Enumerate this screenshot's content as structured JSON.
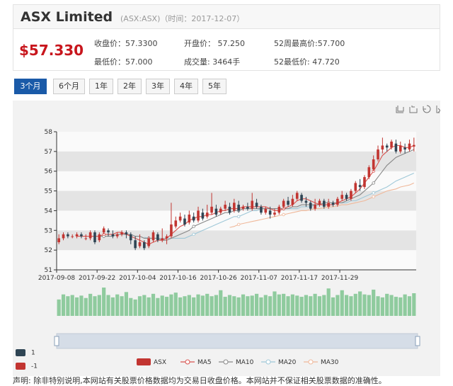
{
  "header": {
    "title": "ASX Limited",
    "subtitle": "(ASX:ASX)（时间：2017-12-07）"
  },
  "stats": {
    "price": "$57.330",
    "close": "收盘价：57.3300",
    "open": "开盘价： 57.250",
    "high52": "52周最高价:57.700",
    "low": "最低价：57.000",
    "volume": "成交量: 3464手",
    "low52": "52最低价: 47.720"
  },
  "tabs": [
    {
      "label": "3个月",
      "active": true
    },
    {
      "label": "6个月",
      "active": false
    },
    {
      "label": "1年",
      "active": false
    },
    {
      "label": "2年",
      "active": false
    },
    {
      "label": "3年",
      "active": false
    },
    {
      "label": "4年",
      "active": false
    },
    {
      "label": "5年",
      "active": false
    }
  ],
  "toolbar_icons": [
    "data-zoom-icon",
    "zoom-reset-icon",
    "restore-icon",
    "save-image-icon"
  ],
  "colors": {
    "up": "#c23531",
    "down": "#2f4554",
    "volume": "#8fcb9e",
    "ma5": "#d9534f",
    "ma10": "#888888",
    "ma20": "#9fc8d8",
    "ma30": "#f0b89a"
  },
  "chart_data": {
    "type": "candlestick",
    "ylim": [
      51,
      58
    ],
    "yticks": [
      "58",
      "57",
      "56",
      "55",
      "54",
      "53",
      "52",
      "51"
    ],
    "xticks": [
      "2017-09-08",
      "2017-09-22",
      "2017-10-04",
      "2017-10-16",
      "2017-10-26",
      "2017-11-07",
      "2017-11-17",
      "2017-11-29"
    ],
    "candles": [
      [
        52.4,
        52.6,
        52.3,
        52.8
      ],
      [
        52.6,
        52.8,
        52.5,
        52.9
      ],
      [
        52.8,
        52.7,
        52.6,
        52.9
      ],
      [
        52.7,
        52.7,
        52.6,
        52.8
      ],
      [
        52.7,
        52.8,
        52.6,
        52.9
      ],
      [
        52.8,
        52.7,
        52.6,
        52.9
      ],
      [
        52.6,
        52.6,
        52.5,
        52.8
      ],
      [
        52.6,
        52.9,
        52.5,
        53.0
      ],
      [
        52.9,
        52.4,
        52.3,
        53.0
      ],
      [
        52.5,
        52.8,
        52.4,
        52.9
      ],
      [
        52.9,
        53.1,
        52.8,
        53.2
      ],
      [
        53.0,
        52.9,
        52.7,
        53.1
      ],
      [
        52.8,
        52.7,
        52.6,
        53.0
      ],
      [
        52.7,
        52.8,
        52.6,
        52.9
      ],
      [
        52.8,
        52.9,
        52.7,
        53.0
      ],
      [
        52.9,
        52.8,
        52.6,
        53.0
      ],
      [
        52.8,
        52.5,
        52.3,
        52.9
      ],
      [
        52.5,
        52.1,
        52.0,
        52.7
      ],
      [
        52.2,
        52.4,
        52.1,
        52.8
      ],
      [
        52.4,
        52.1,
        52.0,
        52.5
      ],
      [
        52.2,
        52.6,
        52.1,
        52.7
      ],
      [
        52.5,
        52.9,
        52.4,
        53.0
      ],
      [
        52.8,
        52.5,
        52.4,
        52.9
      ],
      [
        52.5,
        52.6,
        52.4,
        53.1
      ],
      [
        52.6,
        52.7,
        52.3,
        52.8
      ],
      [
        52.7,
        53.3,
        52.6,
        54.4
      ],
      [
        53.2,
        53.5,
        53.1,
        53.7
      ],
      [
        53.5,
        53.7,
        53.4,
        53.9
      ],
      [
        53.6,
        53.3,
        53.2,
        53.8
      ],
      [
        53.4,
        53.8,
        53.3,
        54.0
      ],
      [
        53.7,
        53.5,
        53.4,
        53.9
      ],
      [
        53.5,
        54.0,
        53.4,
        54.2
      ],
      [
        53.9,
        53.6,
        53.5,
        54.1
      ],
      [
        53.7,
        53.9,
        53.6,
        54.3
      ],
      [
        53.9,
        54.2,
        53.8,
        54.9
      ],
      [
        54.1,
        53.8,
        53.7,
        54.3
      ],
      [
        53.9,
        54.1,
        53.8,
        54.2
      ],
      [
        54.1,
        54.3,
        54.0,
        54.5
      ],
      [
        54.2,
        53.9,
        53.8,
        54.4
      ],
      [
        54.0,
        54.4,
        53.9,
        54.6
      ],
      [
        54.3,
        54.0,
        53.9,
        54.5
      ],
      [
        54.1,
        54.2,
        54.0,
        54.3
      ],
      [
        54.2,
        54.1,
        54.0,
        54.4
      ],
      [
        54.1,
        54.5,
        54.0,
        54.9
      ],
      [
        54.4,
        54.2,
        54.1,
        54.6
      ],
      [
        54.2,
        53.9,
        53.8,
        54.3
      ],
      [
        53.9,
        54.1,
        53.8,
        54.2
      ],
      [
        54.0,
        53.8,
        53.6,
        54.2
      ],
      [
        53.8,
        53.9,
        53.7,
        54.1
      ],
      [
        53.9,
        54.2,
        53.8,
        54.3
      ],
      [
        54.2,
        54.5,
        54.1,
        54.6
      ],
      [
        54.5,
        54.3,
        54.2,
        54.7
      ],
      [
        54.3,
        54.6,
        54.2,
        54.8
      ],
      [
        54.6,
        54.9,
        54.5,
        55.0
      ],
      [
        54.8,
        54.5,
        54.4,
        54.9
      ],
      [
        54.5,
        54.4,
        54.2,
        54.7
      ],
      [
        54.4,
        54.1,
        54.0,
        54.5
      ],
      [
        54.1,
        54.3,
        54.0,
        54.6
      ],
      [
        54.3,
        54.5,
        54.2,
        54.6
      ],
      [
        54.5,
        54.2,
        54.1,
        54.6
      ],
      [
        54.2,
        54.4,
        54.1,
        54.6
      ],
      [
        54.4,
        54.3,
        54.2,
        54.5
      ],
      [
        54.3,
        54.6,
        54.2,
        54.7
      ],
      [
        54.6,
        54.8,
        54.5,
        55.0
      ],
      [
        54.8,
        54.6,
        54.5,
        54.9
      ],
      [
        54.6,
        55.0,
        54.5,
        55.1
      ],
      [
        55.0,
        55.4,
        54.9,
        55.5
      ],
      [
        55.3,
        55.2,
        55.0,
        55.6
      ],
      [
        55.2,
        55.7,
        55.1,
        55.8
      ],
      [
        55.7,
        56.2,
        55.6,
        56.3
      ],
      [
        56.1,
        56.6,
        56.0,
        56.8
      ],
      [
        56.6,
        57.1,
        56.5,
        57.3
      ],
      [
        57.1,
        57.3,
        56.9,
        57.7
      ],
      [
        57.3,
        57.2,
        57.0,
        57.4
      ],
      [
        57.2,
        57.5,
        57.1,
        57.6
      ],
      [
        57.4,
        57.0,
        56.9,
        57.6
      ],
      [
        57.0,
        57.3,
        56.9,
        57.5
      ],
      [
        57.2,
        57.1,
        56.9,
        57.4
      ],
      [
        57.1,
        57.4,
        57.0,
        57.6
      ],
      [
        57.25,
        57.33,
        57.0,
        57.7
      ]
    ],
    "ma5": [
      null,
      null,
      null,
      null,
      52.7,
      52.7,
      52.7,
      52.7,
      52.7,
      52.7,
      52.8,
      52.8,
      52.8,
      52.9,
      52.9,
      52.8,
      52.7,
      52.6,
      52.5,
      52.4,
      52.3,
      52.4,
      52.5,
      52.5,
      52.6,
      52.8,
      53.0,
      53.2,
      53.3,
      53.5,
      53.6,
      53.7,
      53.7,
      53.8,
      53.8,
      53.9,
      54.0,
      54.0,
      54.1,
      54.1,
      54.1,
      54.2,
      54.2,
      54.2,
      54.2,
      54.2,
      54.2,
      54.1,
      54.0,
      54.0,
      54.1,
      54.2,
      54.3,
      54.5,
      54.6,
      54.6,
      54.5,
      54.4,
      54.3,
      54.3,
      54.3,
      54.3,
      54.4,
      54.5,
      54.6,
      54.7,
      54.9,
      55.1,
      55.4,
      55.7,
      56.0,
      56.4,
      56.8,
      57.0,
      57.2,
      57.3,
      57.3,
      57.2,
      57.2,
      57.3
    ],
    "ma10": [
      null,
      null,
      null,
      null,
      null,
      null,
      null,
      null,
      null,
      52.7,
      52.7,
      52.7,
      52.7,
      52.8,
      52.8,
      52.8,
      52.8,
      52.7,
      52.7,
      52.6,
      52.6,
      52.6,
      52.6,
      52.5,
      52.5,
      52.6,
      52.7,
      52.8,
      52.9,
      53.0,
      53.2,
      53.3,
      53.4,
      53.5,
      53.6,
      53.7,
      53.8,
      53.9,
      53.9,
      54.0,
      54.0,
      54.1,
      54.1,
      54.1,
      54.1,
      54.1,
      54.1,
      54.1,
      54.1,
      54.1,
      54.1,
      54.1,
      54.2,
      54.2,
      54.3,
      54.3,
      54.3,
      54.3,
      54.3,
      54.4,
      54.4,
      54.4,
      54.4,
      54.4,
      54.5,
      54.6,
      54.7,
      54.8,
      55.0,
      55.2,
      55.4,
      55.7,
      56.0,
      56.3,
      56.5,
      56.7,
      56.8,
      56.9,
      57.0,
      57.1
    ],
    "ma20": [
      null,
      null,
      null,
      null,
      null,
      null,
      null,
      null,
      null,
      null,
      null,
      null,
      null,
      null,
      null,
      null,
      null,
      null,
      null,
      52.65,
      52.6,
      52.6,
      52.6,
      52.6,
      52.6,
      52.6,
      52.6,
      52.6,
      52.6,
      52.7,
      52.8,
      52.9,
      53.0,
      53.1,
      53.2,
      53.3,
      53.4,
      53.5,
      53.6,
      53.7,
      53.7,
      53.8,
      53.9,
      54.0,
      54.0,
      54.1,
      54.1,
      54.1,
      54.1,
      54.1,
      54.1,
      54.1,
      54.1,
      54.1,
      54.2,
      54.2,
      54.2,
      54.3,
      54.3,
      54.3,
      54.3,
      54.3,
      54.4,
      54.4,
      54.4,
      54.5,
      54.5,
      54.6,
      54.7,
      54.8,
      54.9,
      55.0,
      55.1,
      55.2,
      55.35,
      55.5,
      55.6,
      55.7,
      55.8,
      55.9
    ],
    "ma30": [
      null,
      null,
      null,
      null,
      null,
      null,
      null,
      null,
      null,
      null,
      null,
      null,
      null,
      null,
      null,
      null,
      null,
      null,
      null,
      null,
      null,
      null,
      null,
      null,
      null,
      null,
      null,
      null,
      null,
      null,
      null,
      null,
      null,
      null,
      null,
      null,
      null,
      null,
      53.15,
      53.2,
      53.3,
      53.35,
      53.4,
      53.45,
      53.5,
      53.55,
      53.6,
      53.65,
      53.7,
      53.75,
      53.8,
      53.85,
      53.9,
      53.95,
      54.0,
      54.0,
      54.05,
      54.1,
      54.1,
      54.15,
      54.2,
      54.2,
      54.25,
      54.3,
      54.3,
      54.35,
      54.4,
      54.45,
      54.5,
      54.6,
      54.7,
      54.8,
      54.9,
      55.0,
      55.05,
      55.1,
      55.2,
      55.25,
      55.3,
      55.4
    ],
    "volume": [
      55,
      72,
      66,
      70,
      62,
      68,
      60,
      74,
      66,
      70,
      95,
      70,
      62,
      72,
      66,
      80,
      60,
      55,
      66,
      70,
      62,
      74,
      60,
      68,
      64,
      72,
      78,
      62,
      66,
      70,
      62,
      72,
      68,
      74,
      66,
      70,
      86,
      64,
      70,
      66,
      62,
      72,
      66,
      68,
      74,
      62,
      70,
      66,
      82,
      72,
      74,
      66,
      72,
      68,
      64,
      70,
      66,
      74,
      66,
      70,
      92,
      62,
      70,
      86,
      70,
      66,
      74,
      82,
      72,
      70,
      88,
      66,
      62,
      74,
      70,
      64,
      62,
      72,
      66,
      76
    ],
    "legend": [
      "ASX",
      "MA5",
      "MA10",
      "MA20",
      "MA30"
    ],
    "side_legend": [
      {
        "label": "1",
        "color": "#2f4554"
      },
      {
        "label": "-1",
        "color": "#c23531"
      }
    ]
  },
  "footer": "声明: 除非特别说明,本网站有关股票价格数据均为交易日收盘价格。本网站并不保证相关股票数据的准确性。"
}
